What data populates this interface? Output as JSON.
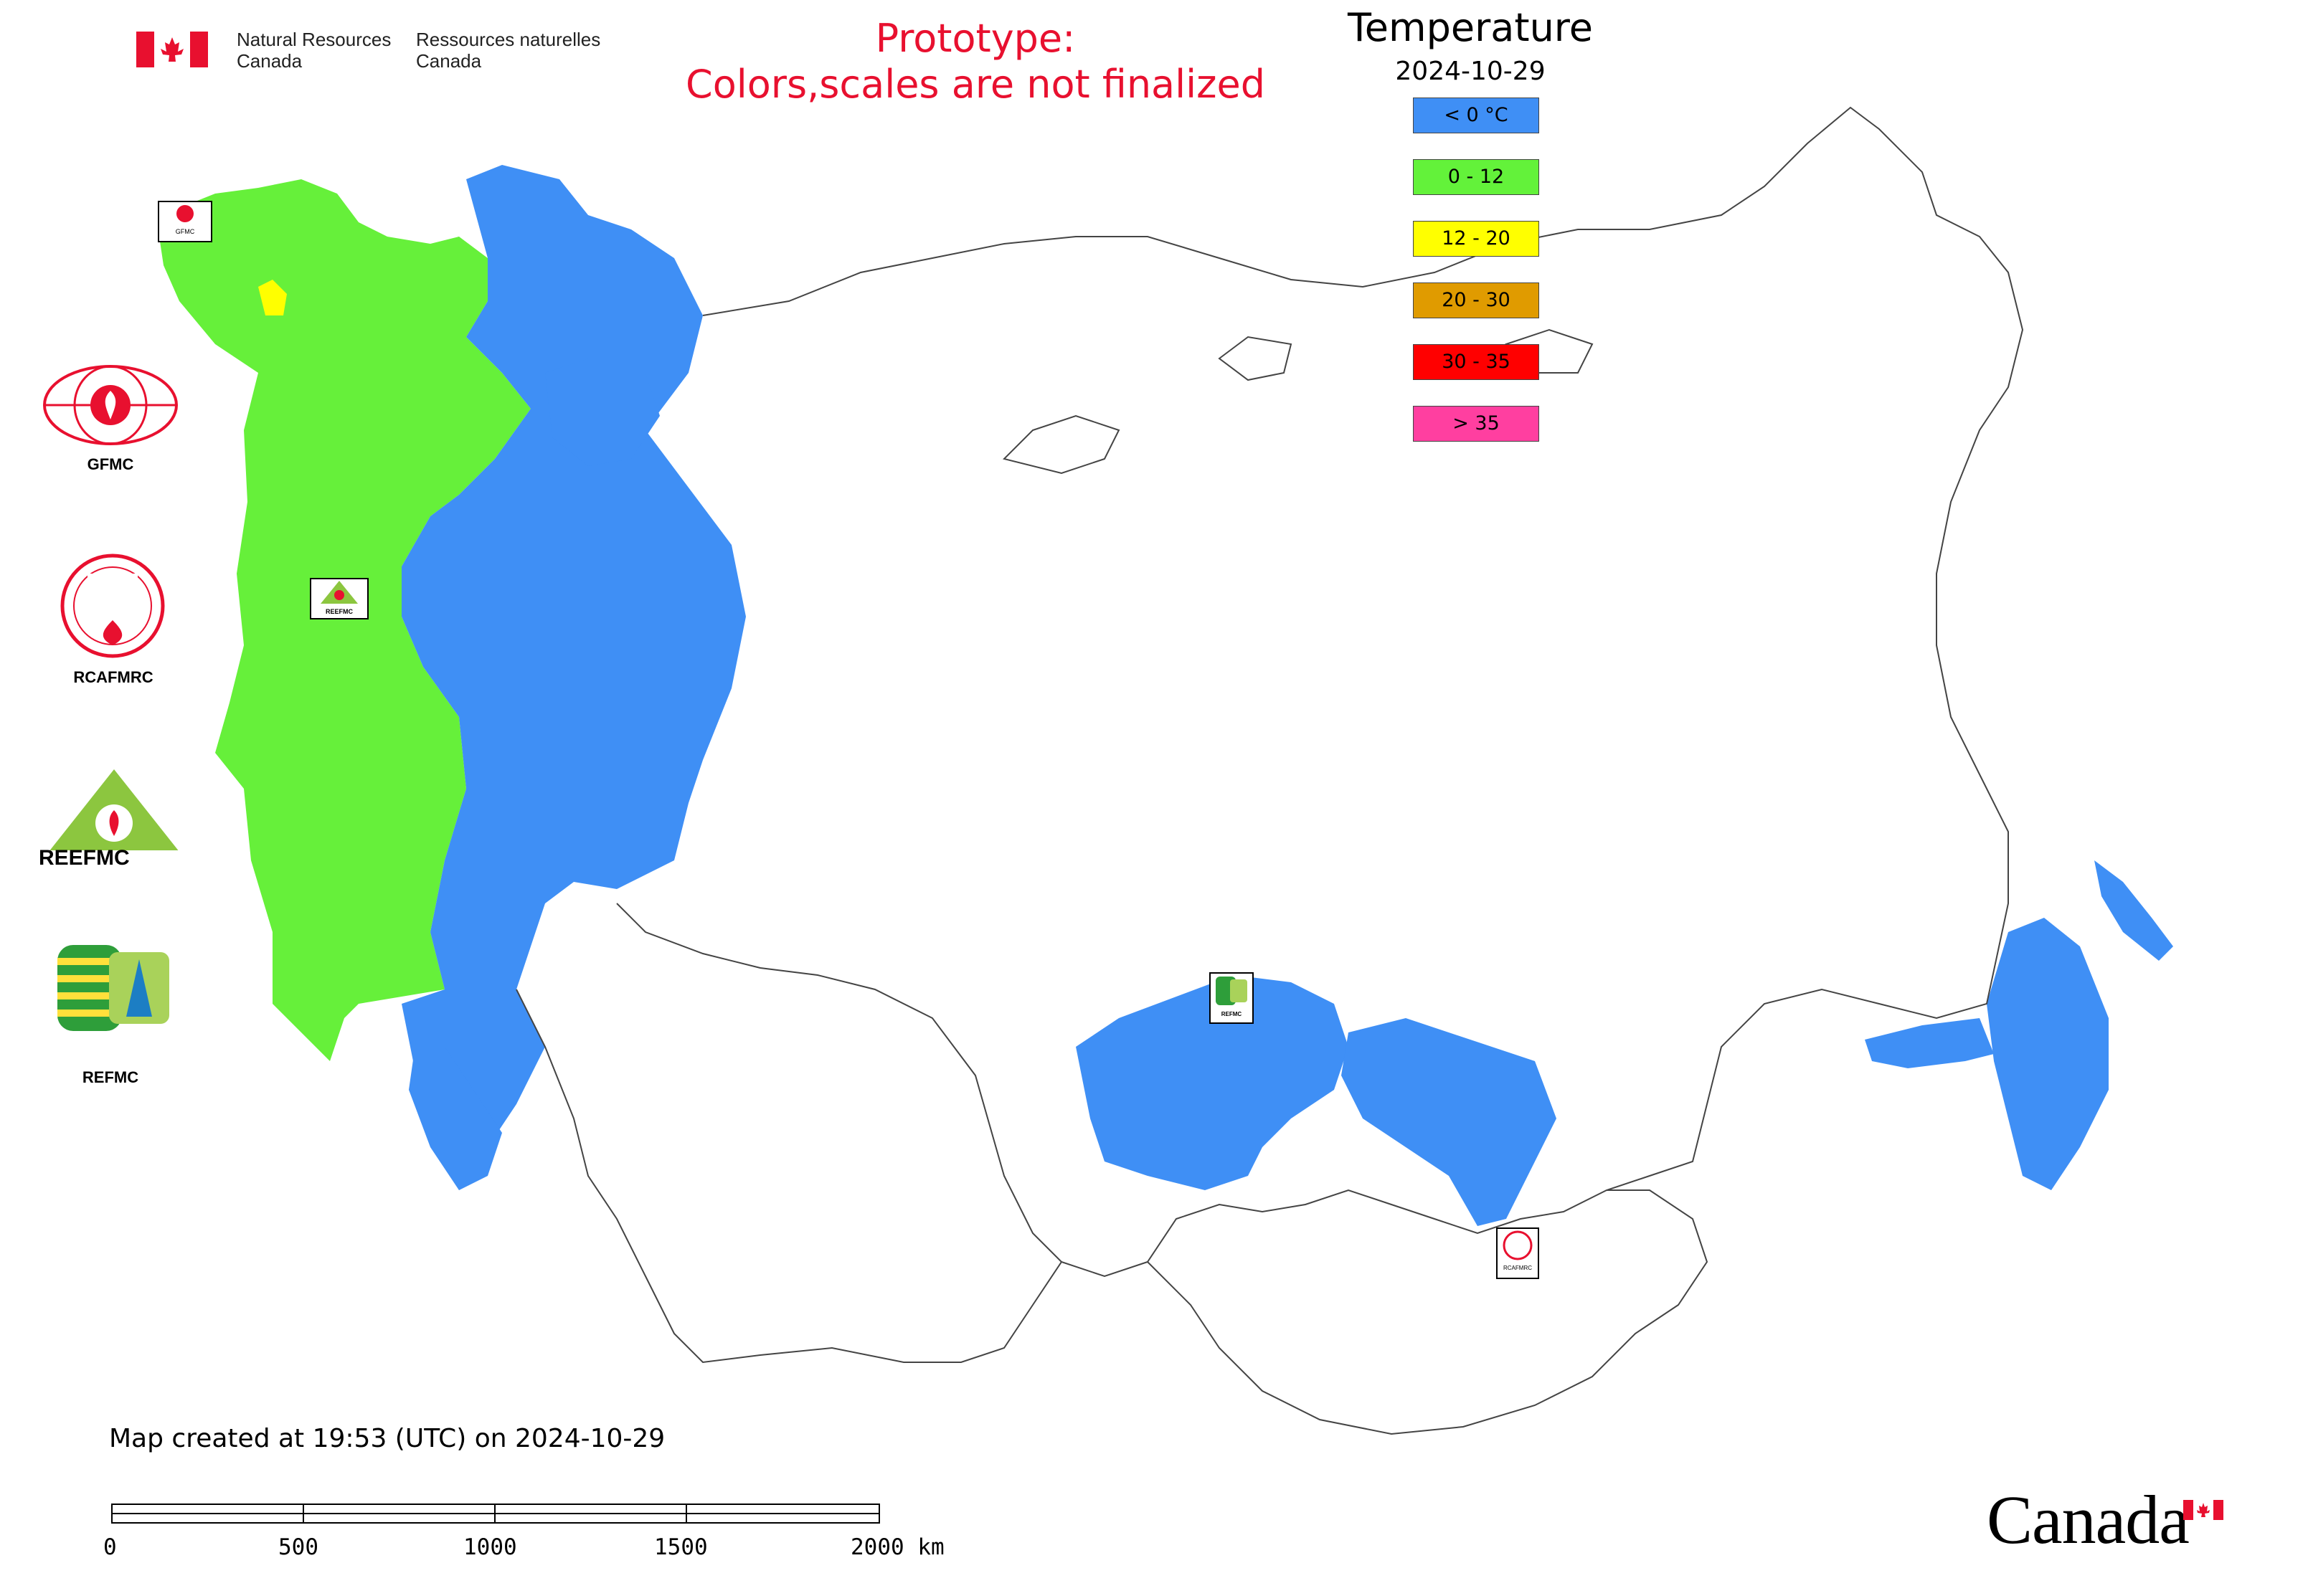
{
  "header": {
    "dept_en_line1": "Natural Resources",
    "dept_en_line2": "Canada",
    "dept_fr_line1": "Ressources naturelles",
    "dept_fr_line2": "Canada"
  },
  "prototype_notice": {
    "line1": "Prototype:",
    "line2": "Colors,scales are not finalized",
    "color": "#e8102f"
  },
  "legend": {
    "title": "Temperature",
    "date": "2024-10-29",
    "classes": [
      {
        "label": "< 0 °C",
        "color": "#3f8ff5"
      },
      {
        "label": "0 - 12",
        "color": "#63f23a"
      },
      {
        "label": "12 - 20",
        "color": "#ffff00"
      },
      {
        "label": "20 - 30",
        "color": "#e09b00"
      },
      {
        "label": "30 - 35",
        "color": "#ff0000"
      },
      {
        "label": "> 35",
        "color": "#ff3fa0"
      }
    ]
  },
  "organizations": [
    {
      "label": "GFMC"
    },
    {
      "label": "RCAFMRC"
    },
    {
      "label": "REEFMC"
    },
    {
      "label": "REFMC"
    }
  ],
  "map_markers": {
    "gfmc": "GFMC",
    "reefmc": "REEFMC",
    "refmc": "REFMC",
    "rcafmrc": "RCAFMRC"
  },
  "footer": {
    "created_text": "Map created at 19:53 (UTC) on 2024-10-29",
    "scale_labels": [
      "0",
      "500",
      "1000",
      "1500",
      "2000 km"
    ],
    "canada_wordmark": "Canada"
  }
}
